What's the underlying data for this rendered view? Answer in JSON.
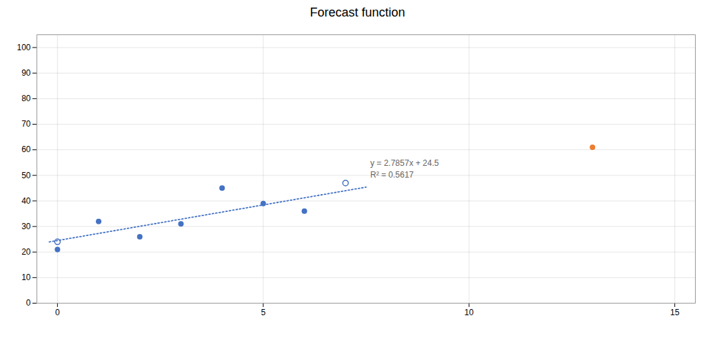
{
  "chart_data": {
    "type": "scatter",
    "title": "Forecast function",
    "series": [
      {
        "type": "scatter",
        "marker": "circle",
        "color": "#4472c4",
        "x": [
          0,
          1,
          2,
          3,
          4,
          6,
          5
        ],
        "values": [
          21,
          32,
          26,
          31,
          45,
          36,
          39
        ]
      },
      {
        "type": "scatter",
        "marker": "open circle",
        "color": "#4472c4",
        "x": [
          0,
          7
        ],
        "values": [
          24,
          47
        ]
      },
      {
        "type": "scatter",
        "marker": "circle",
        "color": "#ed7d31",
        "x": [
          13
        ],
        "values": [
          61
        ]
      },
      {
        "type": "line",
        "line_style": "dotted",
        "color": "#4472c4",
        "x": [
          -0.2,
          7.5
        ],
        "values": [
          23.94286,
          45.39275
        ]
      }
    ],
    "annotations": [
      "y = 2.7857x + 24.5",
      "R² = 0.5617"
    ],
    "xlim": [
      -0.5,
      15.5
    ],
    "ylim": [
      0,
      105
    ],
    "xticks": [
      0,
      5,
      10,
      15
    ],
    "yticks": [
      0,
      10,
      20,
      30,
      40,
      50,
      60,
      70,
      80,
      90,
      100
    ],
    "grid": true
  }
}
